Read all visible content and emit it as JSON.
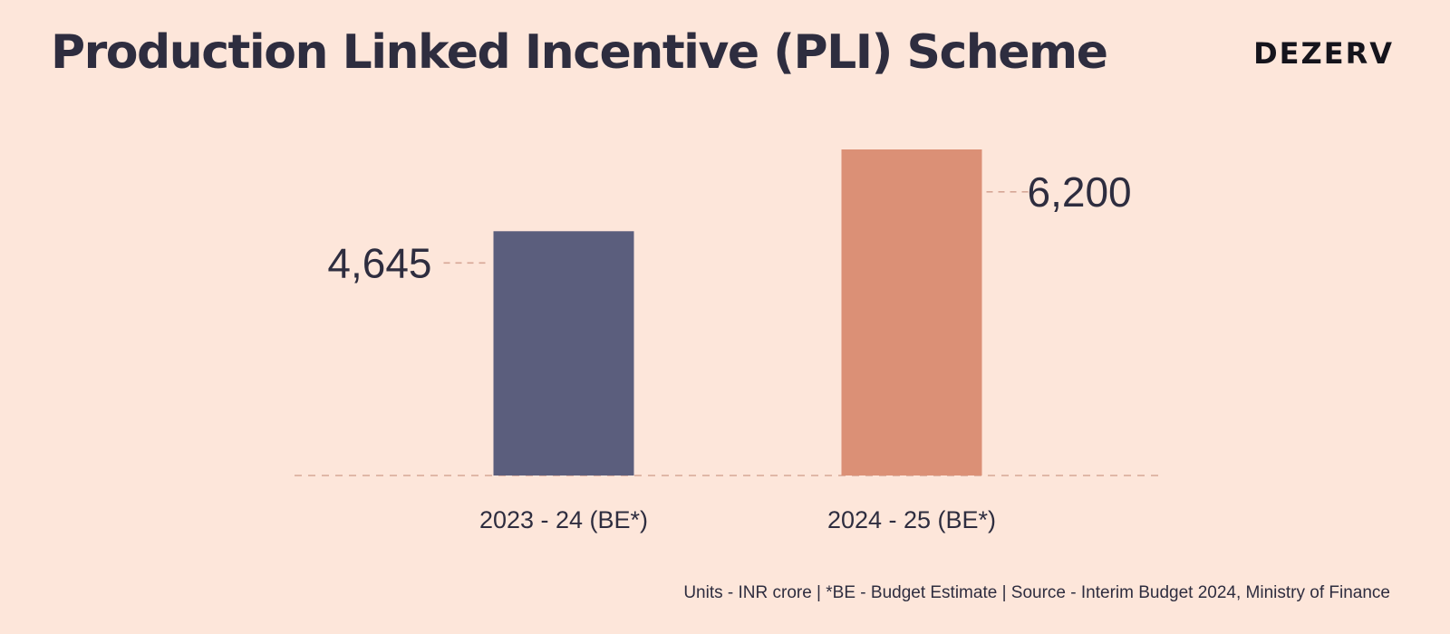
{
  "header": {
    "title": "Production Linked Incentive (PLI) Scheme",
    "brand": "DEZERV"
  },
  "chart_data": {
    "type": "bar",
    "title": "Production Linked Incentive (PLI) Scheme",
    "categories": [
      "2023 - 24 (BE*)",
      "2024 - 25 (BE*)"
    ],
    "values": [
      4645,
      6200
    ],
    "value_labels": [
      "4,645",
      "6,200"
    ],
    "colors": [
      "#5b5e7d",
      "#db9076"
    ],
    "ylim": [
      0,
      6200
    ],
    "grid": false,
    "legend": "none"
  },
  "footnote": "Units - INR crore | *BE - Budget Estimate | Source - Interim Budget 2024, Ministry of Finance",
  "theme": {
    "background": "#fde6da",
    "text": "#2e2d3f",
    "guide": "#d6a796"
  }
}
